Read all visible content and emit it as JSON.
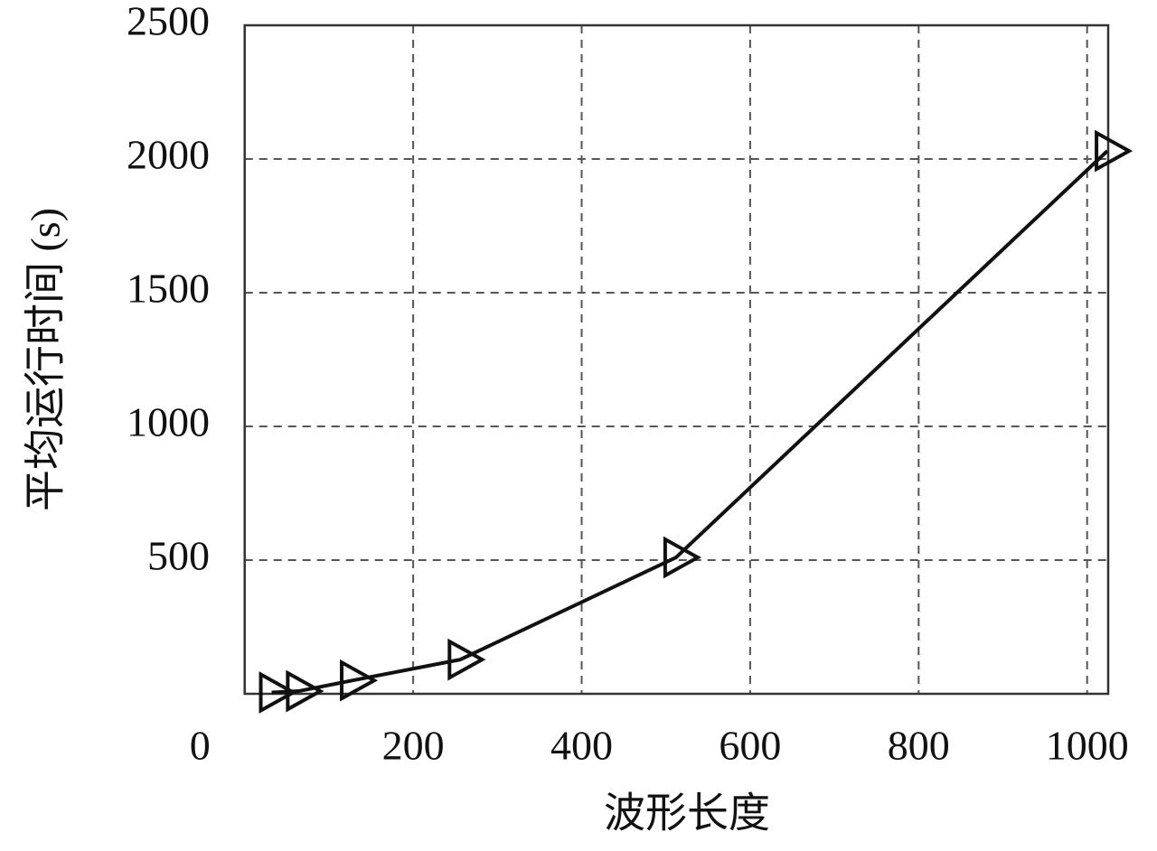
{
  "chart_data": {
    "type": "line",
    "xlabel": "波形长度",
    "ylabel": "平均运行时间 (s)",
    "x": [
      32,
      64,
      128,
      256,
      512,
      1024
    ],
    "series": [
      {
        "name": null,
        "color": "#111111",
        "values": [
          5,
          10,
          50,
          128,
          510,
          2030
        ]
      }
    ],
    "xlim": [
      0,
      1025
    ],
    "ylim": [
      0,
      2500
    ],
    "xticks": [
      0,
      200,
      400,
      600,
      800,
      1000
    ],
    "yticks": [
      500,
      1000,
      1500,
      2000,
      2500
    ],
    "grid": true
  }
}
